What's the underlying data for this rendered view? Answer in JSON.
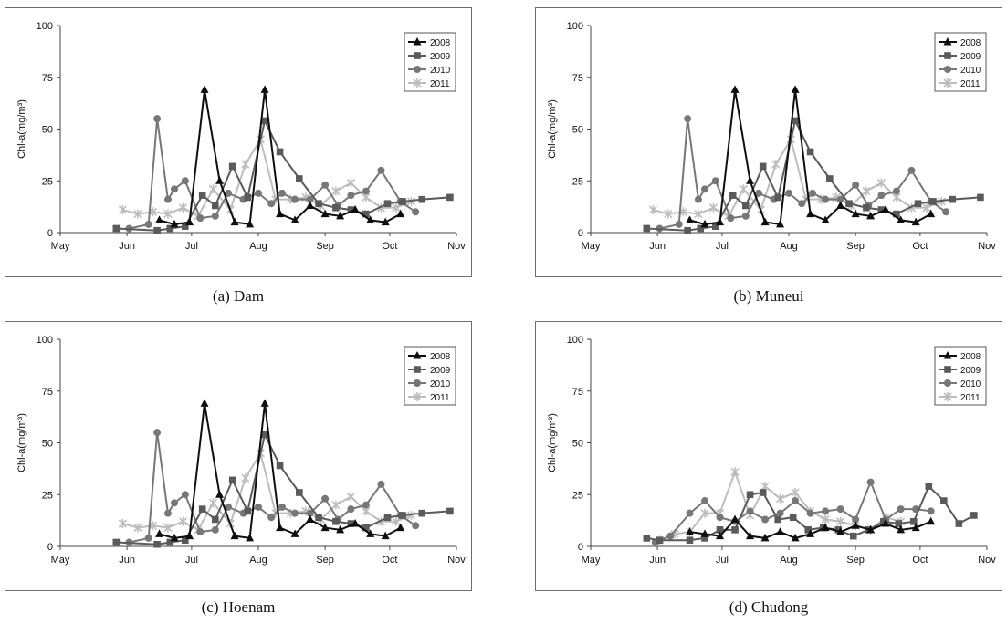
{
  "months": [
    "May",
    "Jun",
    "Jul",
    "Aug",
    "Sep",
    "Oct",
    "Nov"
  ],
  "legend_labels": [
    "2008",
    "2009",
    "2010",
    "2011"
  ],
  "series_colors": {
    "2008": "#0e0e0e",
    "2009": "#5a5a5a",
    "2010": "#777777",
    "2011": "#bdbdbd"
  },
  "markers": {
    "2008": "triangle",
    "2009": "square",
    "2010": "circle",
    "2011": "x"
  },
  "chart_data": [
    {
      "type": "line",
      "caption": "(a) Dam",
      "ylabel": "Chl-a(mg/m³)",
      "x_axis": "date (May 1 – Nov 1)",
      "ylim": [
        0,
        100
      ],
      "yticks": [
        0,
        25,
        50,
        75,
        100
      ],
      "legend_position": "top-right",
      "series": [
        {
          "name": "2008",
          "x": [
            "06-16",
            "06-23",
            "06-30",
            "07-07",
            "07-14",
            "07-21",
            "07-28",
            "08-04",
            "08-11",
            "08-18",
            "08-25",
            "09-01",
            "09-08",
            "09-15",
            "09-22",
            "09-29",
            "10-06"
          ],
          "y": [
            6,
            4,
            5,
            69,
            25,
            5,
            4,
            69,
            9,
            6,
            13,
            9,
            8,
            11,
            6,
            5,
            9
          ]
        },
        {
          "name": "2009",
          "x": [
            "05-27",
            "06-15",
            "06-21",
            "06-28",
            "07-06",
            "07-12",
            "07-20",
            "07-27",
            "08-04",
            "08-11",
            "08-20",
            "08-29",
            "09-06",
            "09-13",
            "09-20",
            "09-30",
            "10-07",
            "10-16",
            "10-29"
          ],
          "y": [
            2,
            1,
            2,
            3,
            18,
            13,
            32,
            17,
            54,
            39,
            26,
            14,
            12,
            11,
            9,
            14,
            15,
            16,
            17
          ]
        },
        {
          "name": "2010",
          "x": [
            "06-02",
            "06-11",
            "06-15",
            "06-20",
            "06-23",
            "06-28",
            "07-05",
            "07-12",
            "07-18",
            "07-25",
            "08-01",
            "08-07",
            "08-12",
            "08-18",
            "08-25",
            "09-01",
            "09-07",
            "09-13",
            "09-20",
            "09-27",
            "10-06",
            "10-13"
          ],
          "y": [
            2,
            4,
            55,
            16,
            21,
            25,
            7,
            8,
            19,
            16,
            19,
            14,
            19,
            16,
            16,
            23,
            13,
            18,
            20,
            30,
            15,
            10
          ]
        },
        {
          "name": "2011",
          "x": [
            "05-30",
            "06-06",
            "06-13",
            "06-20",
            "06-27",
            "07-04",
            "07-11",
            "07-19",
            "07-26",
            "08-02",
            "08-09",
            "08-16",
            "08-23",
            "08-30",
            "09-06",
            "09-13",
            "09-20",
            "09-27",
            "10-04",
            "10-11"
          ],
          "y": [
            11,
            9,
            10,
            9,
            12,
            8,
            21,
            11,
            33,
            45,
            16,
            16,
            17,
            13,
            20,
            24,
            17,
            12,
            12,
            15
          ]
        }
      ]
    },
    {
      "type": "line",
      "caption": "(b) Muneui",
      "ylabel": "Chl-a(mg/m³)",
      "x_axis": "date (May 1 – Nov 1)",
      "ylim": [
        0,
        100
      ],
      "yticks": [
        0,
        25,
        50,
        75,
        100
      ],
      "legend_position": "top-right",
      "series": [
        {
          "name": "2008",
          "x": [
            "06-16",
            "06-23",
            "06-30",
            "07-07",
            "07-14",
            "07-21",
            "07-28",
            "08-04",
            "08-11",
            "08-18",
            "08-25",
            "09-01",
            "09-08",
            "09-15",
            "09-22",
            "09-29",
            "10-06"
          ],
          "y": [
            6,
            4,
            5,
            69,
            25,
            5,
            4,
            69,
            9,
            6,
            13,
            9,
            8,
            11,
            6,
            5,
            9
          ]
        },
        {
          "name": "2009",
          "x": [
            "05-27",
            "06-15",
            "06-21",
            "06-28",
            "07-06",
            "07-12",
            "07-20",
            "07-27",
            "08-04",
            "08-11",
            "08-20",
            "08-29",
            "09-06",
            "09-13",
            "09-20",
            "09-30",
            "10-07",
            "10-16",
            "10-29"
          ],
          "y": [
            2,
            1,
            2,
            3,
            18,
            13,
            32,
            17,
            54,
            39,
            26,
            14,
            12,
            11,
            9,
            14,
            15,
            16,
            17
          ]
        },
        {
          "name": "2010",
          "x": [
            "06-02",
            "06-11",
            "06-15",
            "06-20",
            "06-23",
            "06-28",
            "07-05",
            "07-12",
            "07-18",
            "07-25",
            "08-01",
            "08-07",
            "08-12",
            "08-18",
            "08-25",
            "09-01",
            "09-07",
            "09-13",
            "09-20",
            "09-27",
            "10-06",
            "10-13"
          ],
          "y": [
            2,
            4,
            55,
            16,
            21,
            25,
            7,
            8,
            19,
            16,
            19,
            14,
            19,
            16,
            16,
            23,
            13,
            18,
            20,
            30,
            15,
            10
          ]
        },
        {
          "name": "2011",
          "x": [
            "05-30",
            "06-06",
            "06-13",
            "06-20",
            "06-27",
            "07-04",
            "07-11",
            "07-19",
            "07-26",
            "08-02",
            "08-09",
            "08-16",
            "08-23",
            "08-30",
            "09-06",
            "09-13",
            "09-20",
            "09-27",
            "10-04",
            "10-11"
          ],
          "y": [
            11,
            9,
            10,
            9,
            12,
            8,
            21,
            11,
            33,
            45,
            16,
            16,
            17,
            13,
            20,
            24,
            17,
            12,
            12,
            15
          ]
        }
      ]
    },
    {
      "type": "line",
      "caption": "(c) Hoenam",
      "ylabel": "Chl-a(mg/m³)",
      "x_axis": "date (May 1 – Nov 1)",
      "ylim": [
        0,
        100
      ],
      "yticks": [
        0,
        25,
        50,
        75,
        100
      ],
      "legend_position": "top-right",
      "series": [
        {
          "name": "2008",
          "x": [
            "06-16",
            "06-23",
            "06-30",
            "07-07",
            "07-14",
            "07-21",
            "07-28",
            "08-04",
            "08-11",
            "08-18",
            "08-25",
            "09-01",
            "09-08",
            "09-15",
            "09-22",
            "09-29",
            "10-06"
          ],
          "y": [
            6,
            4,
            5,
            69,
            25,
            5,
            4,
            69,
            9,
            6,
            13,
            9,
            8,
            11,
            6,
            5,
            9
          ]
        },
        {
          "name": "2009",
          "x": [
            "05-27",
            "06-15",
            "06-21",
            "06-28",
            "07-06",
            "07-12",
            "07-20",
            "07-27",
            "08-04",
            "08-11",
            "08-20",
            "08-29",
            "09-06",
            "09-13",
            "09-20",
            "09-30",
            "10-07",
            "10-16",
            "10-29"
          ],
          "y": [
            2,
            1,
            2,
            3,
            18,
            13,
            32,
            17,
            54,
            39,
            26,
            14,
            12,
            11,
            9,
            14,
            15,
            16,
            17
          ]
        },
        {
          "name": "2010",
          "x": [
            "06-02",
            "06-11",
            "06-15",
            "06-20",
            "06-23",
            "06-28",
            "07-05",
            "07-12",
            "07-18",
            "07-25",
            "08-01",
            "08-07",
            "08-12",
            "08-18",
            "08-25",
            "09-01",
            "09-07",
            "09-13",
            "09-20",
            "09-27",
            "10-06",
            "10-13"
          ],
          "y": [
            2,
            4,
            55,
            16,
            21,
            25,
            7,
            8,
            19,
            16,
            19,
            14,
            19,
            16,
            16,
            23,
            13,
            18,
            20,
            30,
            15,
            10
          ]
        },
        {
          "name": "2011",
          "x": [
            "05-30",
            "06-06",
            "06-13",
            "06-20",
            "06-27",
            "07-04",
            "07-11",
            "07-19",
            "07-26",
            "08-02",
            "08-09",
            "08-16",
            "08-23",
            "08-30",
            "09-06",
            "09-13",
            "09-20",
            "09-27",
            "10-04",
            "10-11"
          ],
          "y": [
            11,
            9,
            10,
            9,
            12,
            8,
            21,
            11,
            33,
            45,
            16,
            16,
            17,
            13,
            20,
            24,
            17,
            12,
            12,
            15
          ]
        }
      ]
    },
    {
      "type": "line",
      "caption": "(d) Chudong",
      "ylabel": "Chl-a(mg/m³)",
      "x_axis": "date (May 1 – Nov 1)",
      "ylim": [
        0,
        100
      ],
      "yticks": [
        0,
        25,
        50,
        75,
        100
      ],
      "legend_position": "top-right",
      "series": [
        {
          "name": "2008",
          "x": [
            "06-16",
            "06-23",
            "06-30",
            "07-07",
            "07-14",
            "07-21",
            "07-28",
            "08-04",
            "08-11",
            "08-18",
            "08-25",
            "09-01",
            "09-08",
            "09-15",
            "09-22",
            "09-29",
            "10-06"
          ],
          "y": [
            7,
            6,
            5,
            13,
            5,
            4,
            7,
            4,
            6,
            9,
            7,
            10,
            8,
            11,
            8,
            9,
            12
          ]
        },
        {
          "name": "2009",
          "x": [
            "05-27",
            "06-02",
            "06-16",
            "06-23",
            "06-30",
            "07-07",
            "07-14",
            "07-20",
            "07-27",
            "08-03",
            "08-10",
            "08-17",
            "08-24",
            "08-31",
            "09-07",
            "09-14",
            "09-21",
            "09-28",
            "10-05",
            "10-12",
            "10-19",
            "10-26"
          ],
          "y": [
            4,
            3,
            3,
            4,
            8,
            8,
            25,
            26,
            13,
            14,
            8,
            9,
            8,
            5,
            8,
            12,
            11,
            12,
            29,
            22,
            11,
            15
          ]
        },
        {
          "name": "2010",
          "x": [
            "05-31",
            "06-07",
            "06-16",
            "06-23",
            "06-30",
            "07-07",
            "07-14",
            "07-21",
            "07-28",
            "08-04",
            "08-11",
            "08-18",
            "08-25",
            "09-01",
            "09-08",
            "09-15",
            "09-22",
            "09-29",
            "10-06"
          ],
          "y": [
            2,
            5,
            16,
            22,
            14,
            12,
            17,
            13,
            16,
            22,
            16,
            17,
            18,
            13,
            31,
            13,
            18,
            18,
            17
          ]
        },
        {
          "name": "2011",
          "x": [
            "06-02",
            "06-09",
            "06-16",
            "06-23",
            "06-30",
            "07-07",
            "07-14",
            "07-21",
            "07-28",
            "08-04",
            "08-11",
            "08-18",
            "08-25",
            "09-01",
            "09-08",
            "09-15",
            "09-22"
          ],
          "y": [
            3,
            6,
            7,
            16,
            16,
            36,
            15,
            29,
            23,
            26,
            17,
            13,
            12,
            10,
            8,
            14,
            12
          ]
        }
      ]
    }
  ]
}
